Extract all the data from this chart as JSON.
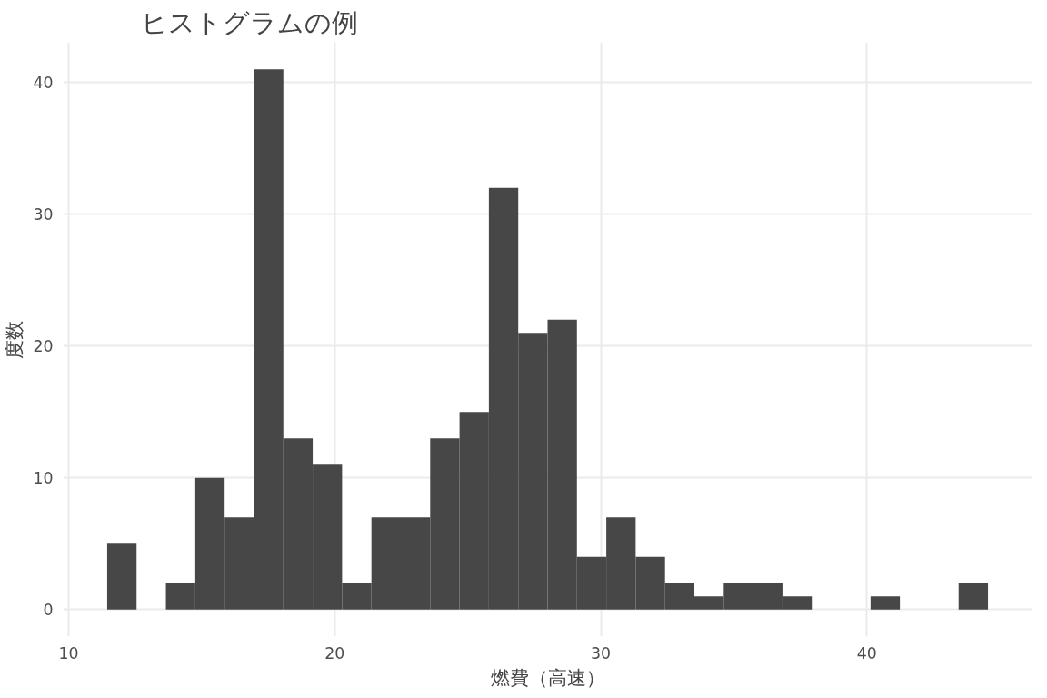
{
  "chart_data": {
    "type": "histogram",
    "title": "ヒストグラムの例",
    "xlabel": "燃費（高速）",
    "ylabel": "度数",
    "color": "#474747",
    "bins": [
      11.448,
      12.552,
      13.655,
      14.759,
      15.862,
      16.966,
      18.069,
      19.172,
      20.276,
      21.379,
      22.483,
      23.586,
      24.69,
      25.793,
      26.897,
      28.0,
      29.103,
      30.207,
      31.31,
      32.414,
      33.517,
      34.621,
      35.724,
      36.828,
      37.931,
      39.034,
      40.138,
      41.241,
      42.345,
      43.448,
      44.552
    ],
    "values": [
      5,
      0,
      2,
      10,
      7,
      41,
      13,
      11,
      2,
      7,
      7,
      13,
      15,
      32,
      21,
      22,
      4,
      7,
      4,
      2,
      1,
      2,
      2,
      1,
      0,
      0,
      1,
      0,
      0,
      2
    ],
    "xlim": [
      9.793,
      46.207
    ],
    "ylim": [
      -2.05,
      43.05
    ],
    "xticks": [
      10,
      20,
      30,
      40
    ],
    "yticks": [
      0,
      10,
      20,
      30,
      40
    ],
    "grid": true
  }
}
